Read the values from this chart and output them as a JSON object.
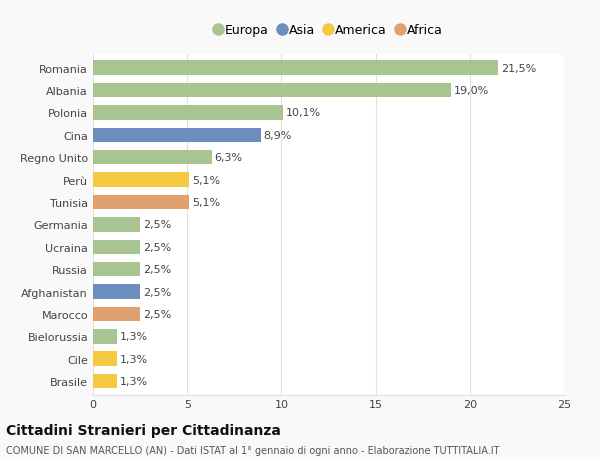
{
  "categories": [
    "Romania",
    "Albania",
    "Polonia",
    "Cina",
    "Regno Unito",
    "Perù",
    "Tunisia",
    "Germania",
    "Ucraina",
    "Russia",
    "Afghanistan",
    "Marocco",
    "Bielorussia",
    "Cile",
    "Brasile"
  ],
  "values": [
    21.5,
    19.0,
    10.1,
    8.9,
    6.3,
    5.1,
    5.1,
    2.5,
    2.5,
    2.5,
    2.5,
    2.5,
    1.3,
    1.3,
    1.3
  ],
  "labels": [
    "21,5%",
    "19,0%",
    "10,1%",
    "8,9%",
    "6,3%",
    "5,1%",
    "5,1%",
    "2,5%",
    "2,5%",
    "2,5%",
    "2,5%",
    "2,5%",
    "1,3%",
    "1,3%",
    "1,3%"
  ],
  "continents": [
    "Europa",
    "Europa",
    "Europa",
    "Asia",
    "Europa",
    "America",
    "Africa",
    "Europa",
    "Europa",
    "Europa",
    "Asia",
    "Africa",
    "Europa",
    "America",
    "America"
  ],
  "continent_colors": {
    "Europa": "#a8c490",
    "Asia": "#6b8ebf",
    "America": "#f5c842",
    "Africa": "#e0a070"
  },
  "legend_order": [
    "Europa",
    "Asia",
    "America",
    "Africa"
  ],
  "title": "Cittadini Stranieri per Cittadinanza",
  "subtitle": "COMUNE DI SAN MARCELLO (AN) - Dati ISTAT al 1° gennaio di ogni anno - Elaborazione TUTTITALIA.IT",
  "xlim": [
    0,
    25
  ],
  "xticks": [
    0,
    5,
    10,
    15,
    20,
    25
  ],
  "bg_color": "#f9f9f9",
  "plot_bg_color": "#ffffff",
  "grid_color": "#e0e0e0",
  "bar_height": 0.65,
  "label_fontsize": 8,
  "tick_fontsize": 8,
  "title_fontsize": 10,
  "subtitle_fontsize": 7
}
